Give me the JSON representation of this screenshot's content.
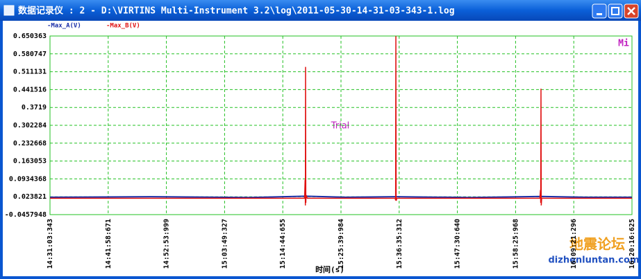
{
  "window": {
    "title": "数据记录仪 : 2 - D:\\VIRTINS Multi-Instrument 3.2\\log\\2011-05-30-14-31-03-343-1.log"
  },
  "watermark": {
    "logo": "地震论坛",
    "site": "dizhenluntan.com"
  },
  "chart_data": {
    "type": "line",
    "x_label": "时间(s)",
    "annotation": "Trial",
    "corner_label": "Mi",
    "grid": true,
    "xlim": [
      52263.343,
      58816.625
    ],
    "xticks": [
      {
        "value": 52263.343,
        "label": "14:31:03:343"
      },
      {
        "value": 52918.671,
        "label": "14:41:58:671"
      },
      {
        "value": 53573.999,
        "label": "14:52:53:999"
      },
      {
        "value": 54229.327,
        "label": "15:03:49:327"
      },
      {
        "value": 54884.655,
        "label": "15:14:44:655"
      },
      {
        "value": 55539.984,
        "label": "15:25:39:984"
      },
      {
        "value": 56195.312,
        "label": "15:36:35:312"
      },
      {
        "value": 56850.64,
        "label": "15:47:30:640"
      },
      {
        "value": 57505.968,
        "label": "15:58:25:968"
      },
      {
        "value": 58161.296,
        "label": "16:09:21:296"
      },
      {
        "value": 58816.625,
        "label": "16:20:16:625"
      }
    ],
    "ylim": [
      -0.0457948,
      0.650363
    ],
    "yticks": [
      -0.0457948,
      0.023821,
      0.0934368,
      0.163053,
      0.232668,
      0.302284,
      0.3719,
      0.441516,
      0.511131,
      0.580747,
      0.650363
    ],
    "series": [
      {
        "name": "-Max_A(V)",
        "color": "#1a2ea8",
        "x": [
          52263.343,
          53400,
          54500,
          55141,
          55600,
          56158,
          57000,
          57792,
          58300,
          58816.625
        ],
        "values": [
          0.022,
          0.024,
          0.021,
          0.026,
          0.022,
          0.024,
          0.021,
          0.025,
          0.022,
          0.022
        ]
      },
      {
        "name": "-Max_B(V)",
        "color": "#e01010",
        "x": [
          52263.343,
          55130,
          55136,
          55139,
          55141,
          55144,
          55147,
          55160,
          56150,
          56155,
          56158,
          56161,
          56170,
          57780,
          57786,
          57789,
          57792,
          57795,
          57800,
          58816.625
        ],
        "values": [
          0.018,
          0.018,
          0.09,
          -0.01,
          0.53,
          0.0,
          0.03,
          0.018,
          0.018,
          0.01,
          0.65,
          0.008,
          0.018,
          0.018,
          0.05,
          0.0,
          0.445,
          -0.01,
          0.018,
          0.018
        ]
      }
    ]
  }
}
